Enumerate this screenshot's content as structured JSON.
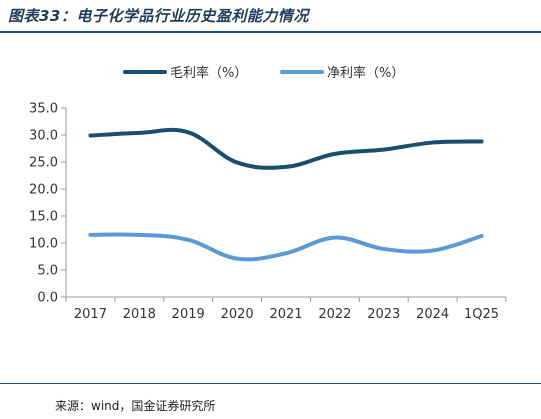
{
  "figure_title": "图表33：电子化学品行业历史盈利能力情况",
  "source": "来源：wind，国金证券研究所",
  "colors": {
    "gross": "#1b4e6e",
    "net": "#5b9bd5",
    "rule": "#1f4e79"
  },
  "chart_data": {
    "type": "line",
    "categories": [
      "2017",
      "2018",
      "2019",
      "2020",
      "2021",
      "2022",
      "2023",
      "2024",
      "1Q25"
    ],
    "series": [
      {
        "name": "毛利率（%）",
        "values": [
          29.9,
          30.4,
          30.5,
          24.9,
          24.1,
          26.5,
          27.3,
          28.6,
          28.8
        ]
      },
      {
        "name": "净利率（%）",
        "values": [
          11.5,
          11.5,
          10.6,
          7.1,
          8.1,
          11.0,
          8.9,
          8.6,
          11.3
        ]
      }
    ],
    "ylim": [
      0,
      35
    ],
    "yticks": [
      "0.0",
      "5.0",
      "10.0",
      "15.0",
      "20.0",
      "25.0",
      "30.0",
      "35.0"
    ],
    "legend": "top"
  }
}
